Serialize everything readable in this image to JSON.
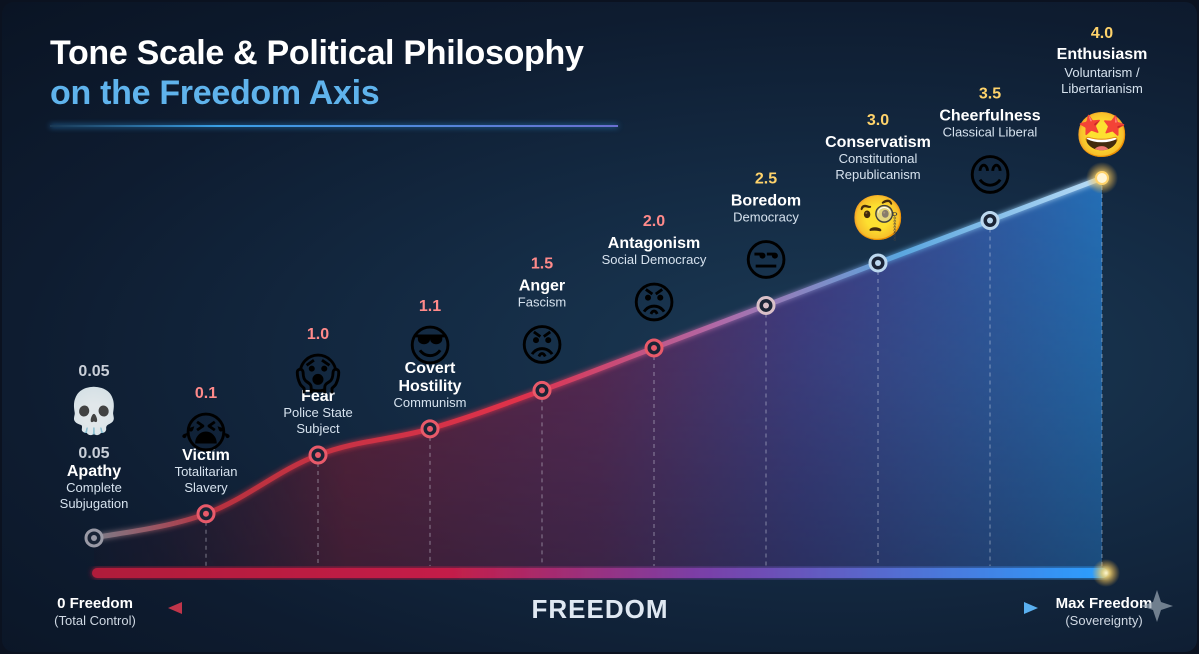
{
  "title": {
    "line1": "Tone Scale & Political Philosophy",
    "line2": "on the Freedom Axis"
  },
  "axis": {
    "center_label": "FREEDOM",
    "left_title": "0 Freedom",
    "left_sub": "(Total Control)",
    "right_title": "Max Freedom",
    "right_sub": "(Sovereignty)"
  },
  "colors": {
    "low": "#e0304a",
    "mid": "#b03a9c",
    "high": "#3d9fe8",
    "glow": "#ffe08a",
    "value_low": "#ff8a8a",
    "value_high": "#ffd36b"
  },
  "chart_data": {
    "type": "line",
    "title": "Tone Scale & Political Philosophy on the Freedom Axis",
    "xlabel": "FREEDOM",
    "ylabel": "",
    "ylim": [
      0,
      4
    ],
    "points": [
      {
        "tone": "0.05",
        "value": 0.05,
        "value2": "0.05",
        "name": "Apathy",
        "desc": [
          "Complete",
          "Subjugation"
        ],
        "emoji": "💀",
        "emoji_name": "skull-icon"
      },
      {
        "tone": "0.1",
        "value": 0.1,
        "name": "Victim",
        "desc": [
          "Totalitarian",
          "Slavery"
        ],
        "emoji": "😭",
        "emoji_name": "crying-face-icon"
      },
      {
        "tone": "1.0",
        "value": 1.0,
        "name": "Fear",
        "desc": [
          "Police State",
          "Subject"
        ],
        "emoji": "😱",
        "emoji_name": "screaming-face-icon"
      },
      {
        "tone": "1.1",
        "value": 1.1,
        "name": "Covert Hostility",
        "desc": [
          "Communism"
        ],
        "emoji": "😎",
        "emoji_name": "masked-face-icon"
      },
      {
        "tone": "1.5",
        "value": 1.5,
        "name": "Anger",
        "desc": [
          "Fascism"
        ],
        "emoji": "😡",
        "emoji_name": "angry-face-icon"
      },
      {
        "tone": "2.0",
        "value": 2.0,
        "name": "Antagonism",
        "desc": [
          "Social Democracy"
        ],
        "emoji": "😡",
        "emoji_name": "antagonism-face-icon"
      },
      {
        "tone": "2.5",
        "value": 2.5,
        "name": "Boredom",
        "desc": [
          "Democracy"
        ],
        "emoji": "😒",
        "emoji_name": "unamused-face-icon"
      },
      {
        "tone": "3.0",
        "value": 3.0,
        "name": "Conservatism",
        "desc": [
          "Constitutional",
          "Republicanism"
        ],
        "emoji": "🧐",
        "emoji_name": "monocle-face-icon"
      },
      {
        "tone": "3.5",
        "value": 3.5,
        "name": "Cheerfulness",
        "desc": [
          "Classical Liberal"
        ],
        "emoji": "😊",
        "emoji_name": "smiling-face-icon"
      },
      {
        "tone": "4.0",
        "value": 4.0,
        "name": "Enthusiasm",
        "desc": [
          "Voluntarism /",
          "Libertarianism"
        ],
        "emoji": "🤩",
        "emoji_name": "star-struck-face-icon"
      }
    ]
  }
}
